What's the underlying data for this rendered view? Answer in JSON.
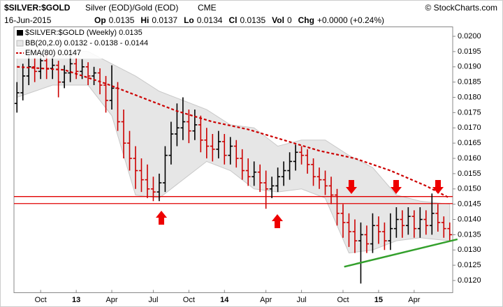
{
  "header": {
    "symbol": "$SILVER:$GOLD",
    "description": "Silver (EOD)/Gold (EOD)",
    "exchange": "CME",
    "copyright": "© StockCharts.com",
    "date": "16-Jun-2015",
    "quote": [
      [
        "Op",
        "0.0135"
      ],
      [
        "Hi",
        "0.0137"
      ],
      [
        "Lo",
        "0.0134"
      ],
      [
        "Cl",
        "0.0135"
      ],
      [
        "Vol",
        "0"
      ],
      [
        "Chg",
        "+0.0000 (+0.24%)"
      ]
    ]
  },
  "chart_data": {
    "type": "ohlc",
    "categories": [
      null,
      null,
      null,
      null,
      "Oct",
      null,
      null,
      null,
      null,
      null,
      "13",
      null,
      null,
      null,
      null,
      null,
      "Apr",
      null,
      null,
      null,
      null,
      null,
      null,
      "Jul",
      null,
      null,
      null,
      null,
      null,
      "Oct",
      null,
      null,
      null,
      null,
      null,
      "14",
      null,
      null,
      null,
      null,
      null,
      null,
      "Apr",
      null,
      null,
      null,
      null,
      null,
      "Jul",
      null,
      null,
      null,
      null,
      null,
      null,
      "Oct",
      null,
      null,
      null,
      null,
      null,
      "15",
      null,
      null,
      null,
      null,
      null,
      "Apr",
      null,
      null,
      null,
      null,
      null,
      null
    ],
    "series": [
      {
        "name": "$SILVER:$GOLD (Weekly) 0.0135",
        "up_color": "#000000",
        "down_color": "#cc0000",
        "open": [
          0.0178,
          0.01815,
          0.0187,
          0.019,
          0.01885,
          0.0192,
          0.01895,
          0.01905,
          0.0185,
          0.0188,
          0.0191,
          0.01885,
          0.019,
          0.0187,
          0.0188,
          0.0184,
          0.0179,
          0.0183,
          0.0172,
          0.0165,
          0.016,
          0.0156,
          0.0153,
          0.015,
          0.0149,
          0.0152,
          0.0161,
          0.0168,
          0.017,
          0.0172,
          0.0169,
          0.0171,
          0.0166,
          0.0164,
          0.0163,
          0.01655,
          0.0161,
          0.0164,
          0.016,
          0.0156,
          0.0154,
          0.01555,
          0.0152,
          0.015,
          0.0151,
          0.0154,
          0.0156,
          0.0159,
          0.0162,
          0.0161,
          0.0158,
          0.0154,
          0.0153,
          0.0151,
          0.0148,
          0.0142,
          0.0139,
          0.0136,
          0.0133,
          0.0135,
          0.0132,
          0.0138,
          0.0136,
          0.0133,
          0.0137,
          0.014,
          0.0138,
          0.0141,
          0.0137,
          0.014,
          0.0138,
          0.0142,
          0.0139,
          0.0137
        ],
        "high": [
          0.0185,
          0.0191,
          0.01935,
          0.0193,
          0.01945,
          0.01945,
          0.01935,
          0.0192,
          0.01905,
          0.01935,
          0.0193,
          0.01925,
          0.01915,
          0.019,
          0.01895,
          0.0187,
          0.01905,
          0.0185,
          0.0176,
          0.0169,
          0.0164,
          0.016,
          0.0158,
          0.0154,
          0.0155,
          0.0164,
          0.0172,
          0.0178,
          0.018,
          0.0176,
          0.0176,
          0.0174,
          0.017,
          0.0168,
          0.0169,
          0.0168,
          0.0167,
          0.0166,
          0.0163,
          0.016,
          0.0159,
          0.0158,
          0.0156,
          0.0154,
          0.0157,
          0.0159,
          0.0162,
          0.01645,
          0.0164,
          0.0163,
          0.016,
          0.0157,
          0.0156,
          0.0154,
          0.015,
          0.0145,
          0.0142,
          0.014,
          0.0139,
          0.0138,
          0.0142,
          0.0141,
          0.0139,
          0.0142,
          0.0144,
          0.0143,
          0.0144,
          0.0143,
          0.0144,
          0.0143,
          0.01485,
          0.0145,
          0.0141,
          0.0139
        ],
        "low": [
          0.0175,
          0.0179,
          0.0184,
          0.0185,
          0.0186,
          0.0186,
          0.0186,
          0.018,
          0.0183,
          0.0185,
          0.0186,
          0.0186,
          0.0184,
          0.0184,
          0.0181,
          0.0175,
          0.0176,
          0.0169,
          0.016,
          0.0156,
          0.015,
          0.0149,
          0.0147,
          0.0146,
          0.0146,
          0.0149,
          0.0158,
          0.0164,
          0.0166,
          0.0165,
          0.0166,
          0.0162,
          0.016,
          0.0159,
          0.016,
          0.0158,
          0.0158,
          0.0157,
          0.0153,
          0.0151,
          0.0151,
          0.0149,
          0.01435,
          0.0147,
          0.0149,
          0.0151,
          0.0153,
          0.0156,
          0.0158,
          0.0155,
          0.0151,
          0.015,
          0.0148,
          0.0145,
          0.0138,
          0.0134,
          0.0131,
          0.0129,
          0.0119,
          0.0129,
          0.0129,
          0.0132,
          0.013,
          0.013,
          0.0134,
          0.0134,
          0.0135,
          0.0134,
          0.0134,
          0.0135,
          0.0135,
          0.0136,
          0.0134,
          0.0133
        ],
        "close": [
          0.01815,
          0.0187,
          0.019,
          0.01885,
          0.0192,
          0.01895,
          0.01905,
          0.0185,
          0.0188,
          0.0191,
          0.01885,
          0.019,
          0.0187,
          0.0188,
          0.0184,
          0.0179,
          0.0183,
          0.0172,
          0.0165,
          0.016,
          0.0156,
          0.0153,
          0.015,
          0.0149,
          0.0152,
          0.0161,
          0.0168,
          0.017,
          0.0172,
          0.0169,
          0.0171,
          0.0166,
          0.0164,
          0.0163,
          0.01655,
          0.0161,
          0.0164,
          0.016,
          0.0156,
          0.0154,
          0.01555,
          0.0152,
          0.015,
          0.0151,
          0.0154,
          0.0156,
          0.0159,
          0.0162,
          0.0161,
          0.0158,
          0.0154,
          0.0153,
          0.0151,
          0.0148,
          0.0142,
          0.0139,
          0.0136,
          0.0133,
          0.0135,
          0.0132,
          0.0138,
          0.0136,
          0.0133,
          0.0137,
          0.014,
          0.0138,
          0.0141,
          0.0137,
          0.014,
          0.0138,
          0.0142,
          0.0139,
          0.0137,
          0.0135
        ]
      }
    ],
    "bands": [
      {
        "name": "BB(20,2.0) 0.0132 - 0.0138 - 0.0144",
        "color": "#e6e6e6",
        "x": [
          0,
          6,
          12,
          16,
          20,
          24,
          28,
          32,
          36,
          40,
          44,
          48,
          52,
          56,
          60,
          64,
          68,
          73
        ],
        "upper": [
          0.0196,
          0.0196,
          0.0195,
          0.0191,
          0.0187,
          0.0182,
          0.0179,
          0.0176,
          0.0171,
          0.017,
          0.0164,
          0.0166,
          0.0166,
          0.0161,
          0.0157,
          0.0148,
          0.0146,
          0.0145
        ],
        "lower": [
          0.018,
          0.0184,
          0.0184,
          0.0174,
          0.0148,
          0.0147,
          0.0153,
          0.0159,
          0.0156,
          0.015,
          0.0149,
          0.015,
          0.0147,
          0.0129,
          0.013,
          0.0133,
          0.0134,
          0.0133
        ]
      }
    ],
    "lines": [
      {
        "name": "EMA(80) 0.0147",
        "color": "#cc0000",
        "dashed": true,
        "x": [
          0,
          8,
          15,
          21,
          27,
          33,
          39,
          45,
          51,
          57,
          63,
          69,
          73
        ],
        "values": [
          0.019,
          0.0189,
          0.01845,
          0.018,
          0.01755,
          0.0172,
          0.01695,
          0.0166,
          0.01625,
          0.016,
          0.0156,
          0.0151,
          0.0147
        ]
      }
    ],
    "levels": [
      0.01475,
      0.01452
    ],
    "level_color": "#e00000",
    "trendline": {
      "color": "#33a02c",
      "x": [
        55.2,
        74.3
      ],
      "values": [
        0.01245,
        0.01335
      ]
    },
    "ylim": [
      0.0116,
      0.0203
    ],
    "yticks": [
      {
        "value": 0.012,
        "label": "0.0120"
      },
      {
        "value": 0.0125,
        "label": "0.0125"
      },
      {
        "value": 0.013,
        "label": "0.0130"
      },
      {
        "value": 0.0135,
        "label": "0.0135"
      },
      {
        "value": 0.014,
        "label": "0.0140"
      },
      {
        "value": 0.0145,
        "label": "0.0145"
      },
      {
        "value": 0.015,
        "label": "0.0150"
      },
      {
        "value": 0.0155,
        "label": "0.0155"
      },
      {
        "value": 0.016,
        "label": "0.0160"
      },
      {
        "value": 0.0165,
        "label": "0.0165"
      },
      {
        "value": 0.017,
        "label": "0.0170"
      },
      {
        "value": 0.0175,
        "label": "0.0175"
      },
      {
        "value": 0.018,
        "label": "0.0180"
      },
      {
        "value": 0.0185,
        "label": "0.0185"
      },
      {
        "value": 0.019,
        "label": "0.0190"
      },
      {
        "value": 0.0195,
        "label": "0.0195"
      },
      {
        "value": 0.02,
        "label": "0.0200"
      }
    ],
    "grid": false
  }
}
